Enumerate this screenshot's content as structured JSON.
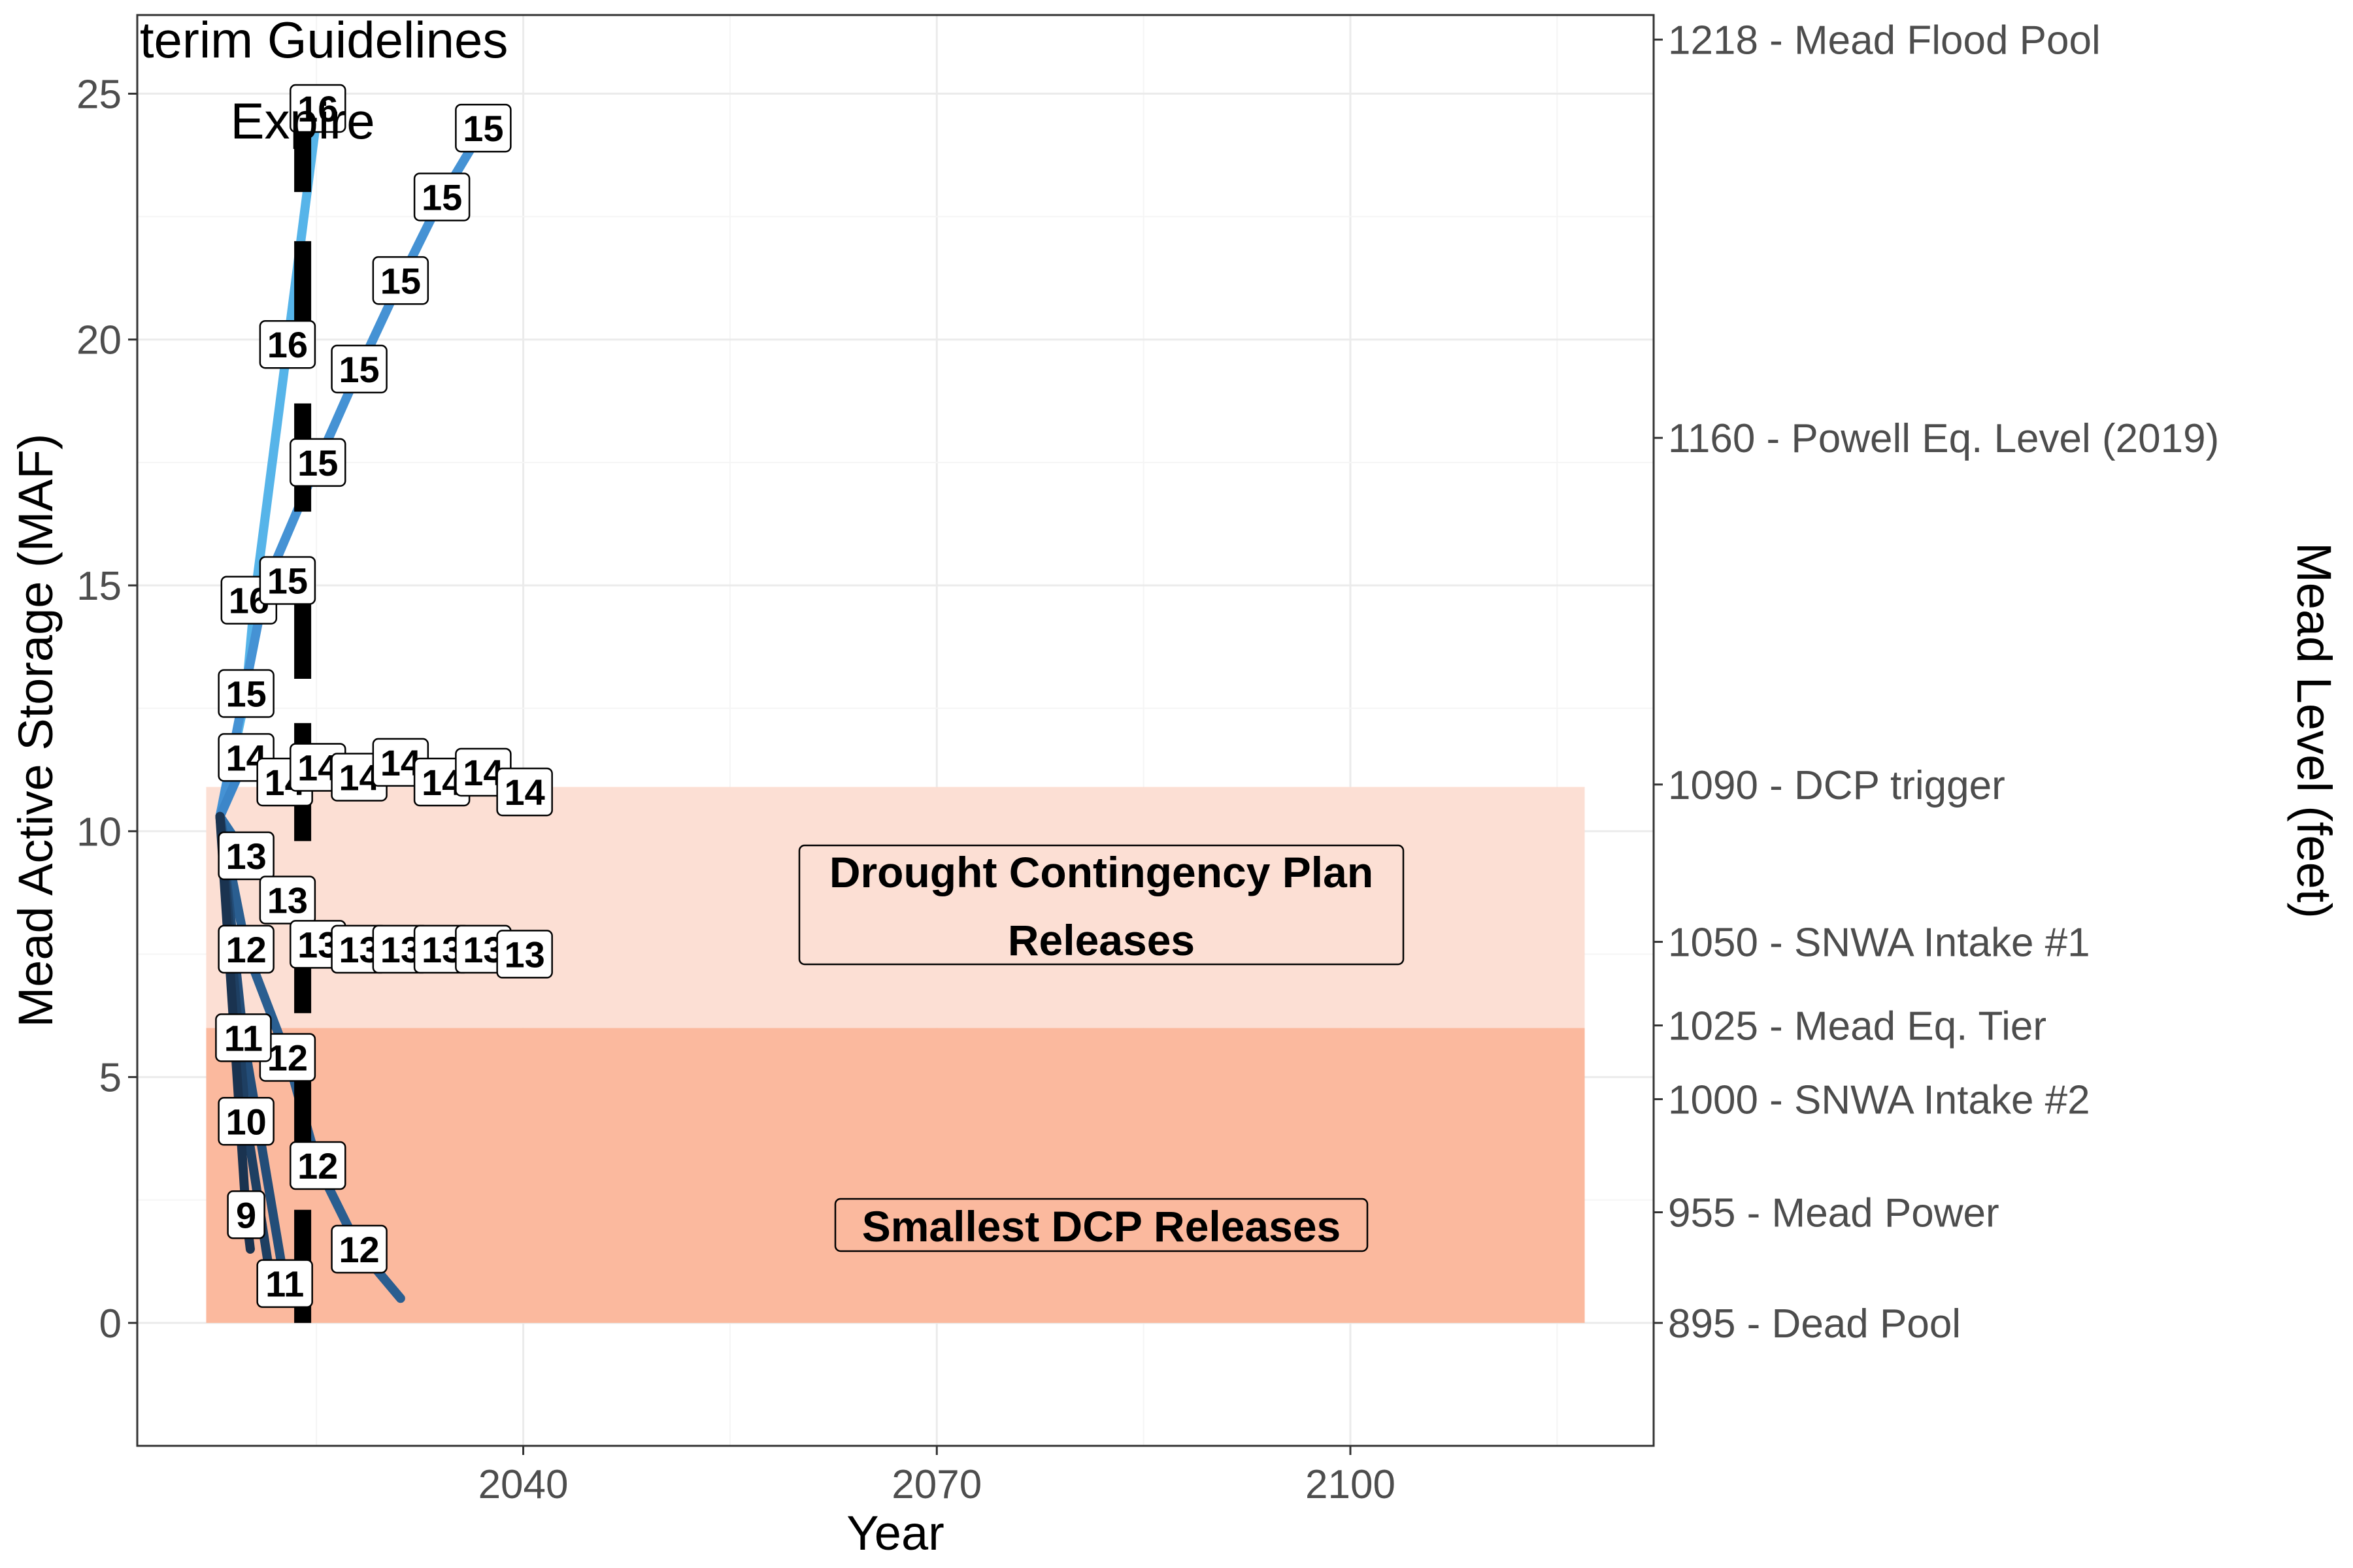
{
  "chart_data": {
    "type": "line",
    "title": "",
    "xlabel": "Year",
    "ylabel": "Mead Active Storage (MAF)",
    "ylabel_right": "Mead Level (feet)",
    "xlim": [
      2012,
      2122
    ],
    "ylim": [
      -2.5,
      26.6
    ],
    "x_ticks": [
      2040,
      2070,
      2100
    ],
    "y_ticks": [
      0,
      5,
      10,
      15,
      20,
      25
    ],
    "grid": true,
    "legend": "none",
    "right_axis_ticks": [
      {
        "y": 26.1,
        "label": "1218  -  Mead Flood Pool"
      },
      {
        "y": 18.0,
        "label": "1160  -  Powell Eq. Level (2019)"
      },
      {
        "y": 10.95,
        "label": "1090  -  DCP trigger"
      },
      {
        "y": 7.75,
        "label": "1050  -  SNWA Intake #1"
      },
      {
        "y": 6.05,
        "label": "1025  -  Mead Eq. Tier"
      },
      {
        "y": 4.55,
        "label": "1000  -  SNWA Intake #2"
      },
      {
        "y": 2.25,
        "label": "955  -  Mead Power"
      },
      {
        "y": 0.0,
        "label": "895  -  Dead Pool"
      }
    ],
    "zones": [
      {
        "label": "Smallest DCP Releases",
        "x": [
          2017,
          2117
        ],
        "y": [
          0,
          6.0
        ],
        "color": "#FBB99E"
      },
      {
        "label": "Drought Contingency Plan Releases",
        "x": [
          2017,
          2117
        ],
        "y": [
          6.0,
          10.9
        ],
        "color": "#FCDFD4"
      }
    ],
    "annotations": {
      "interim": "Interim Guidelines",
      "expire": "Expire",
      "interim_year": 2024,
      "interim_segments": [
        [
          0,
          2.3
        ],
        [
          2.8,
          5.6
        ],
        [
          6.3,
          8.8
        ],
        [
          9.8,
          12.2
        ],
        [
          13.1,
          15.4
        ],
        [
          16.5,
          18.7
        ],
        [
          19.6,
          22.0
        ],
        [
          23.0,
          25.0
        ]
      ]
    },
    "series": [
      {
        "name": "",
        "color": "#56B4E9",
        "label_value": "16",
        "points": [
          [
            2018,
            10.3
          ],
          [
            2019.9,
            12.8
          ],
          [
            2020.5,
            14.7
          ],
          [
            2022.9,
            19.9
          ],
          [
            2025.1,
            24.7
          ]
        ]
      },
      {
        "name": "",
        "color": "#4592D4",
        "label_value": "15",
        "points": [
          [
            2018,
            10.3
          ],
          [
            2021.3,
            15.0
          ],
          [
            2025.1,
            17.5
          ],
          [
            2028.1,
            19.4
          ],
          [
            2031.1,
            21.2
          ],
          [
            2034.1,
            22.9
          ],
          [
            2037.1,
            24.3
          ]
        ]
      },
      {
        "name": "",
        "color": "#3C86C9",
        "label_value": "14",
        "points": [
          [
            2018,
            10.3
          ],
          [
            2019.9,
            11.5
          ],
          [
            2022.7,
            11.0
          ],
          [
            2025.1,
            11.3
          ],
          [
            2028.1,
            11.1
          ],
          [
            2031.1,
            11.4
          ],
          [
            2034.1,
            11.0
          ],
          [
            2037.1,
            11.2
          ],
          [
            2040.1,
            10.8
          ]
        ]
      },
      {
        "name": "",
        "color": "#2E6EA8",
        "label_value": "13",
        "points": [
          [
            2018,
            10.3
          ],
          [
            2019.9,
            9.5
          ],
          [
            2022.9,
            8.6
          ],
          [
            2025.1,
            7.7
          ],
          [
            2028.1,
            7.6
          ],
          [
            2031.1,
            7.6
          ],
          [
            2034.1,
            7.6
          ],
          [
            2037.1,
            7.6
          ],
          [
            2040.1,
            7.5
          ]
        ]
      },
      {
        "name": "",
        "color": "#2A5E90",
        "label_value": "12",
        "points": [
          [
            2018,
            10.3
          ],
          [
            2019.9,
            7.6
          ],
          [
            2022.9,
            5.4
          ],
          [
            2025.1,
            3.2
          ],
          [
            2028.1,
            1.5
          ],
          [
            2031.1,
            0.5
          ]
        ]
      },
      {
        "name": "",
        "color": "#234D78",
        "label_value": "11",
        "points": [
          [
            2018,
            10.3
          ],
          [
            2019.7,
            5.8
          ],
          [
            2022.7,
            0.8
          ]
        ]
      },
      {
        "name": "",
        "color": "#1E3F62",
        "label_value": "10",
        "points": [
          [
            2018,
            10.3
          ],
          [
            2019.9,
            4.1
          ],
          [
            2021.5,
            1.2
          ]
        ]
      },
      {
        "name": "",
        "color": "#1A3350",
        "label_value": "9",
        "points": [
          [
            2018,
            10.3
          ],
          [
            2019.9,
            2.2
          ],
          [
            2020.2,
            1.5
          ]
        ]
      }
    ],
    "point_labels": [
      {
        "x": 2025.1,
        "y": 24.7,
        "text": "16"
      },
      {
        "x": 2022.9,
        "y": 19.9,
        "text": "16"
      },
      {
        "x": 2020.1,
        "y": 14.7,
        "text": "16"
      },
      {
        "x": 2037.1,
        "y": 24.3,
        "text": "15"
      },
      {
        "x": 2034.1,
        "y": 22.9,
        "text": "15"
      },
      {
        "x": 2031.1,
        "y": 21.2,
        "text": "15"
      },
      {
        "x": 2028.1,
        "y": 19.4,
        "text": "15"
      },
      {
        "x": 2025.1,
        "y": 17.5,
        "text": "15"
      },
      {
        "x": 2022.9,
        "y": 15.1,
        "text": "15"
      },
      {
        "x": 2019.9,
        "y": 12.8,
        "text": "15"
      },
      {
        "x": 2019.9,
        "y": 11.5,
        "text": "14"
      },
      {
        "x": 2022.7,
        "y": 11.0,
        "text": "14"
      },
      {
        "x": 2025.1,
        "y": 11.3,
        "text": "14"
      },
      {
        "x": 2028.1,
        "y": 11.1,
        "text": "14"
      },
      {
        "x": 2031.1,
        "y": 11.4,
        "text": "14"
      },
      {
        "x": 2034.1,
        "y": 11.0,
        "text": "14"
      },
      {
        "x": 2037.1,
        "y": 11.2,
        "text": "14"
      },
      {
        "x": 2040.1,
        "y": 10.8,
        "text": "14"
      },
      {
        "x": 2019.9,
        "y": 9.5,
        "text": "13"
      },
      {
        "x": 2022.9,
        "y": 8.6,
        "text": "13"
      },
      {
        "x": 2025.1,
        "y": 7.7,
        "text": "13"
      },
      {
        "x": 2028.1,
        "y": 7.6,
        "text": "13"
      },
      {
        "x": 2031.1,
        "y": 7.6,
        "text": "13"
      },
      {
        "x": 2034.1,
        "y": 7.6,
        "text": "13"
      },
      {
        "x": 2037.1,
        "y": 7.6,
        "text": "13"
      },
      {
        "x": 2040.1,
        "y": 7.5,
        "text": "13"
      },
      {
        "x": 2019.9,
        "y": 7.6,
        "text": "12"
      },
      {
        "x": 2022.9,
        "y": 5.4,
        "text": "12"
      },
      {
        "x": 2025.1,
        "y": 3.2,
        "text": "12"
      },
      {
        "x": 2028.1,
        "y": 1.5,
        "text": "12"
      },
      {
        "x": 2019.7,
        "y": 5.8,
        "text": "11"
      },
      {
        "x": 2022.7,
        "y": 0.8,
        "text": "11"
      },
      {
        "x": 2019.9,
        "y": 4.1,
        "text": "10"
      },
      {
        "x": 2019.9,
        "y": 2.2,
        "text": "9"
      }
    ]
  }
}
